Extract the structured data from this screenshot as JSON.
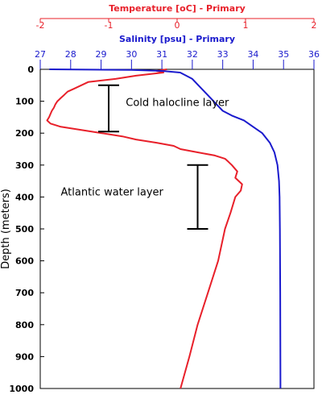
{
  "chart_data": {
    "type": "line",
    "ylabel": "Depth (meters)",
    "y": {
      "range": [
        0,
        1000
      ],
      "inverted": true,
      "ticks": [
        "0",
        "100",
        "200",
        "300",
        "400",
        "500",
        "600",
        "700",
        "800",
        "900",
        "1000"
      ]
    },
    "x_axes": [
      {
        "id": "temperature",
        "label": "Temperature [oC] - Primary",
        "range": [
          -2,
          2
        ],
        "ticks": [
          "-2",
          "-1",
          "0",
          "1",
          "2"
        ],
        "color": "#e8202a"
      },
      {
        "id": "salinity",
        "label": "Salinity [psu] - Primary",
        "range": [
          27,
          36
        ],
        "ticks": [
          "27",
          "28",
          "29",
          "30",
          "31",
          "32",
          "33",
          "34",
          "35",
          "36"
        ],
        "color": "#1a1acd"
      }
    ],
    "series": [
      {
        "axis": "temperature",
        "color": "#e8202a",
        "points": [
          [
            -0.15,
            0
          ],
          [
            -0.3,
            5
          ],
          [
            -0.2,
            10
          ],
          [
            -0.6,
            20
          ],
          [
            -0.9,
            30
          ],
          [
            -1.3,
            40
          ],
          [
            -1.4,
            50
          ],
          [
            -1.5,
            60
          ],
          [
            -1.6,
            70
          ],
          [
            -1.65,
            80
          ],
          [
            -1.7,
            90
          ],
          [
            -1.75,
            100
          ],
          [
            -1.78,
            110
          ],
          [
            -1.8,
            120
          ],
          [
            -1.83,
            130
          ],
          [
            -1.85,
            140
          ],
          [
            -1.87,
            150
          ],
          [
            -1.9,
            160
          ],
          [
            -1.85,
            170
          ],
          [
            -1.7,
            180
          ],
          [
            -1.4,
            190
          ],
          [
            -1.1,
            200
          ],
          [
            -0.8,
            210
          ],
          [
            -0.6,
            220
          ],
          [
            -0.3,
            230
          ],
          [
            -0.05,
            240
          ],
          [
            0.05,
            250
          ],
          [
            0.3,
            260
          ],
          [
            0.55,
            270
          ],
          [
            0.7,
            280
          ],
          [
            0.75,
            290
          ],
          [
            0.8,
            300
          ],
          [
            0.88,
            320
          ],
          [
            0.85,
            340
          ],
          [
            0.95,
            360
          ],
          [
            0.93,
            380
          ],
          [
            0.85,
            400
          ],
          [
            0.78,
            450
          ],
          [
            0.7,
            500
          ],
          [
            0.6,
            600
          ],
          [
            0.45,
            700
          ],
          [
            0.3,
            800
          ],
          [
            0.18,
            900
          ],
          [
            0.05,
            1000
          ]
        ]
      },
      {
        "axis": "salinity",
        "color": "#1a1acd",
        "points": [
          [
            27.3,
            0
          ],
          [
            30.0,
            2
          ],
          [
            31.0,
            5
          ],
          [
            31.6,
            10
          ],
          [
            31.8,
            20
          ],
          [
            32.0,
            30
          ],
          [
            32.2,
            50
          ],
          [
            32.4,
            70
          ],
          [
            32.7,
            100
          ],
          [
            33.0,
            130
          ],
          [
            33.3,
            145
          ],
          [
            33.7,
            160
          ],
          [
            34.0,
            180
          ],
          [
            34.3,
            200
          ],
          [
            34.55,
            230
          ],
          [
            34.7,
            260
          ],
          [
            34.8,
            300
          ],
          [
            34.85,
            350
          ],
          [
            34.87,
            400
          ],
          [
            34.88,
            500
          ],
          [
            34.89,
            700
          ],
          [
            34.9,
            1000
          ]
        ]
      }
    ],
    "annotations": [
      {
        "text": "Cold halocline layer",
        "depth_range": [
          50,
          195
        ],
        "x_temp": -1.0,
        "label_at": [
          -0.75,
          115
        ]
      },
      {
        "text": "Atlantic water layer",
        "depth_range": [
          300,
          500
        ],
        "x_temp": 0.3,
        "label_at": [
          -1.7,
          395
        ]
      }
    ],
    "grid": false,
    "legend": "none"
  }
}
